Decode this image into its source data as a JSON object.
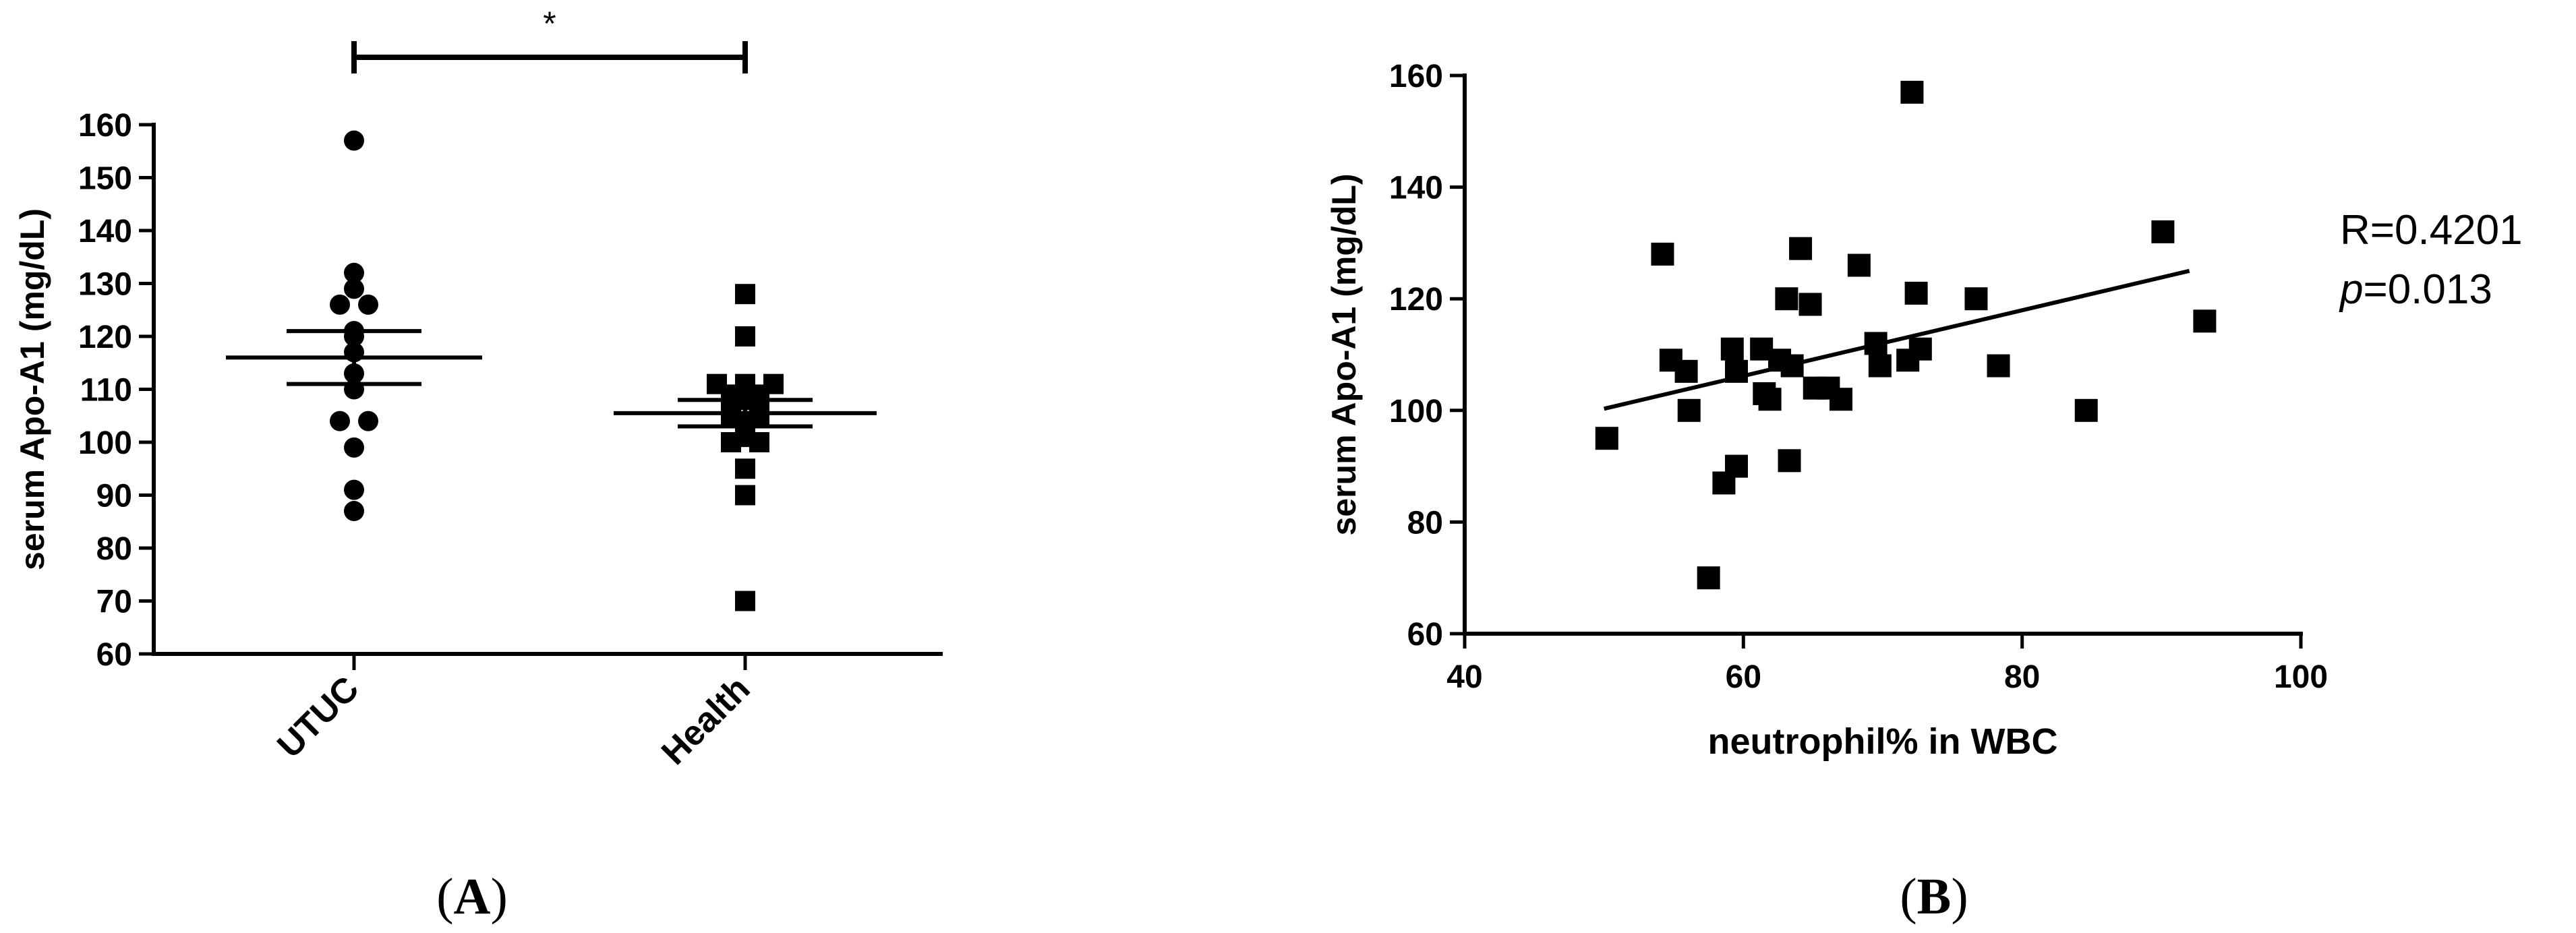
{
  "panel_labels": {
    "a": "A",
    "b": "B"
  },
  "chart_data": [
    {
      "type": "scatter",
      "ylabel": "serum Apo-A1 (mg/dL)",
      "ylim": [
        60,
        160
      ],
      "yticks": [
        60,
        70,
        80,
        90,
        100,
        110,
        120,
        130,
        140,
        150,
        160
      ],
      "categories": [
        "UTUC",
        "Health"
      ],
      "significance": "*",
      "groups": [
        {
          "category": "UTUC",
          "marker": "circle",
          "values": [
            157,
            132,
            129,
            126,
            126,
            121,
            120,
            117,
            113,
            110,
            104,
            104,
            99,
            91,
            87
          ],
          "mean": 116,
          "sem_low": 111,
          "sem_high": 121
        },
        {
          "category": "Health",
          "marker": "square",
          "values": [
            128,
            120,
            111,
            111,
            111,
            110,
            109,
            109,
            108,
            107,
            107,
            105,
            105,
            104,
            103,
            102,
            101,
            100,
            100,
            95,
            90,
            70
          ],
          "mean": 105.5,
          "sem_low": 103,
          "sem_high": 108
        }
      ]
    },
    {
      "type": "scatter",
      "xlabel": "neutrophil% in WBC",
      "ylabel": "serum Apo-A1 (mg/dL)",
      "xlim": [
        40,
        100
      ],
      "ylim": [
        60,
        160
      ],
      "xticks": [
        40,
        60,
        80,
        100
      ],
      "yticks": [
        60,
        80,
        100,
        120,
        140,
        160
      ],
      "points": [
        [
          50.2,
          95
        ],
        [
          54.2,
          128
        ],
        [
          54.8,
          109
        ],
        [
          55.9,
          107
        ],
        [
          56.1,
          100
        ],
        [
          57.5,
          70
        ],
        [
          58.6,
          87
        ],
        [
          59.2,
          111
        ],
        [
          59.5,
          90
        ],
        [
          59.5,
          107
        ],
        [
          61.3,
          111
        ],
        [
          61.5,
          103
        ],
        [
          61.9,
          102
        ],
        [
          62.6,
          109
        ],
        [
          63.1,
          120
        ],
        [
          63.3,
          91
        ],
        [
          63.5,
          108
        ],
        [
          64.1,
          129
        ],
        [
          64.8,
          119
        ],
        [
          65.1,
          104
        ],
        [
          66.1,
          104
        ],
        [
          67.0,
          102
        ],
        [
          68.3,
          126
        ],
        [
          69.5,
          112
        ],
        [
          69.8,
          108
        ],
        [
          71.8,
          109
        ],
        [
          72.1,
          157
        ],
        [
          72.4,
          121
        ],
        [
          72.7,
          111
        ],
        [
          76.7,
          120
        ],
        [
          78.3,
          108
        ],
        [
          84.6,
          100
        ],
        [
          90.1,
          132
        ],
        [
          93.1,
          116
        ]
      ],
      "fit_line": {
        "x": [
          50,
          92
        ],
        "y": [
          100.3,
          125
        ]
      },
      "annotation": {
        "r_text": "R=0.4201",
        "p_symbol": "p",
        "p_value": "=0.013"
      }
    }
  ]
}
